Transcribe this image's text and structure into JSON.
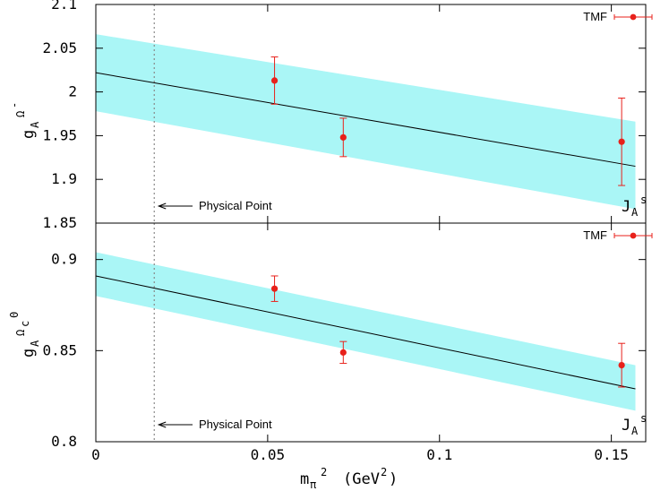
{
  "chart_data": [
    {
      "type": "scatter",
      "panel": "top",
      "ylabel": {
        "base": "g",
        "sub": "A",
        "sup": "Ω",
        "supsup": "-"
      },
      "xlim": [
        0,
        0.16
      ],
      "ylim": [
        1.85,
        2.1
      ],
      "yticks": [
        1.85,
        1.9,
        1.95,
        2.0,
        2.05,
        2.1
      ],
      "ytick_labels": [
        "1.85",
        "1.9",
        "1.95",
        "2",
        "2.05",
        "2.1"
      ],
      "series": [
        {
          "name": "TMF",
          "x": [
            0.052,
            0.072,
            0.153
          ],
          "y": [
            2.013,
            1.948,
            1.943
          ],
          "yerr": [
            0.027,
            0.022,
            0.05
          ],
          "color": "#e8211b"
        }
      ],
      "fit": {
        "x": [
          0,
          0.157
        ],
        "y": [
          2.022,
          1.915
        ],
        "band_upper": [
          2.066,
          1.966
        ],
        "band_lower": [
          1.978,
          1.866
        ]
      },
      "band_color": "#aaf6f6",
      "physical_point_x": 0.017,
      "annotation": "Physical Point",
      "current_label": {
        "base": "J",
        "sub": "A",
        "sup": "s"
      }
    },
    {
      "type": "scatter",
      "panel": "bottom",
      "ylabel": {
        "base": "g",
        "sub": "A",
        "sup": "Ω",
        "supsub": "c",
        "supsup": "0"
      },
      "xlim": [
        0,
        0.16
      ],
      "ylim": [
        0.8,
        0.92
      ],
      "yticks": [
        0.8,
        0.85,
        0.9
      ],
      "ytick_labels": [
        "0.8",
        "0.85",
        "0.9"
      ],
      "xticks": [
        0,
        0.05,
        0.1,
        0.15
      ],
      "xtick_labels": [
        "0",
        "0.05",
        "0.1",
        "0.15"
      ],
      "xlabel": {
        "base": "m",
        "sub": "π",
        "sup": "2",
        "unit_pre": "(GeV",
        "unit_sup": "2",
        "unit_post": ")"
      },
      "series": [
        {
          "name": "TMF",
          "x": [
            0.052,
            0.072,
            0.153
          ],
          "y": [
            0.884,
            0.849,
            0.842
          ],
          "yerr": [
            0.007,
            0.006,
            0.012
          ],
          "color": "#e8211b"
        }
      ],
      "fit": {
        "x": [
          0,
          0.157
        ],
        "y": [
          0.891,
          0.829
        ],
        "band_upper": [
          0.904,
          0.842
        ],
        "band_lower": [
          0.88,
          0.817
        ]
      },
      "band_color": "#aaf6f6",
      "physical_point_x": 0.017,
      "annotation": "Physical Point",
      "current_label": {
        "base": "J",
        "sub": "A",
        "sup": "s"
      }
    }
  ]
}
